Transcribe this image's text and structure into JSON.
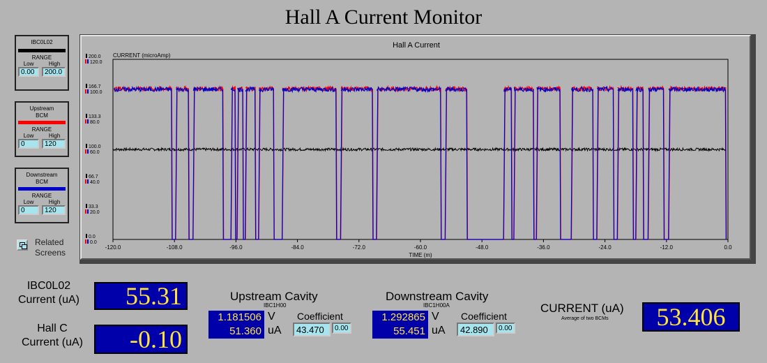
{
  "window": {
    "title": "Hall A Current Monitor"
  },
  "legends": [
    {
      "name": "IBC0L02",
      "color": "#000000",
      "range_label": "RANGE",
      "low_label": "Low",
      "high_label": "High",
      "low": "0.00",
      "high": "200.0"
    },
    {
      "name": "Upstream\nBCM",
      "color": "#ff0000",
      "range_label": "RANGE",
      "low_label": "Low",
      "high_label": "High",
      "low": "0",
      "high": "120"
    },
    {
      "name": "Downstream\nBCM",
      "color": "#0000cc",
      "range_label": "RANGE",
      "low_label": "Low",
      "high_label": "High",
      "low": "0",
      "high": "120"
    }
  ],
  "related": {
    "label": "Related\nScreens",
    "icon": "window-stack-icon"
  },
  "chart_data": {
    "type": "line",
    "title": "Hall A Current",
    "ylabel": "CURRENT (microAmp)",
    "xlabel": "TIME (m)",
    "xlim": [
      -120,
      0
    ],
    "x_ticks": [
      "-120.0",
      "-108.0",
      "-96.0",
      "-84.0",
      "-72.0",
      "-60.0",
      "-48.0",
      "-36.0",
      "-24.0",
      "-12.0",
      "0.0"
    ],
    "y_ticks_black": [
      "200.0",
      "166.7",
      "133.3",
      "100.0",
      "66.7",
      "33.3",
      "0.0"
    ],
    "y_ticks_color": [
      "120.0",
      "100.0",
      "80.0",
      "60.0",
      "40.0",
      "20.0",
      "0.0"
    ],
    "ylim": [
      0,
      120
    ],
    "series": [
      {
        "color": "#000000",
        "level": 100.0,
        "scale_max": 200
      },
      {
        "color": "#ff0000",
        "high": 100.4
      },
      {
        "color": "#0000cc",
        "high": 100.0
      }
    ],
    "beam_on_intervals": [
      [
        -119.8,
        -108.6
      ],
      [
        -107.8,
        -105.3
      ],
      [
        -104.4,
        -98.6
      ],
      [
        -97.0,
        -96.2
      ],
      [
        -95.8,
        -94.7
      ],
      [
        -94.2,
        -92.3
      ],
      [
        -91.6,
        -88.7
      ],
      [
        -87.0,
        -76.5
      ],
      [
        -75.6,
        -69.4
      ],
      [
        -68.6,
        -56.1
      ],
      [
        -55.2,
        -51.0
      ],
      [
        -43.8,
        -42.3
      ],
      [
        -41.8,
        -38.0
      ],
      [
        -37.4,
        -32.8
      ],
      [
        -30.6,
        -26.4
      ],
      [
        -25.6,
        -22.4
      ],
      [
        -21.6,
        -18.6
      ],
      [
        -18.0,
        -16.6
      ],
      [
        -15.6,
        -12.6
      ],
      [
        -11.6,
        -0.5
      ]
    ],
    "grid": false
  },
  "bottom": {
    "ibc_label": "IBC0L02\nCurrent (uA)",
    "ibc_value": "55.31",
    "hallc_label": "Hall C\nCurrent (uA)",
    "hallc_value": "-0.10",
    "upstream": {
      "title": "Upstream Cavity",
      "sub": "IBC1H00",
      "volt": "1.181506",
      "volt_unit": "V",
      "current": "51.360",
      "current_unit": "uA",
      "coef_label": "Coefficient",
      "coef": "43.470",
      "offset": "0.00"
    },
    "downstream": {
      "title": "Downstream Cavity",
      "sub": "IBC1H00A",
      "volt": "1.292865",
      "volt_unit": "V",
      "current": "55.451",
      "current_unit": "uA",
      "coef_label": "Coefficient",
      "coef": "42.890",
      "offset": "0.00"
    },
    "avg": {
      "label": "CURRENT (uA)",
      "sub": "Average of two BCMs",
      "value": "53.406"
    }
  }
}
